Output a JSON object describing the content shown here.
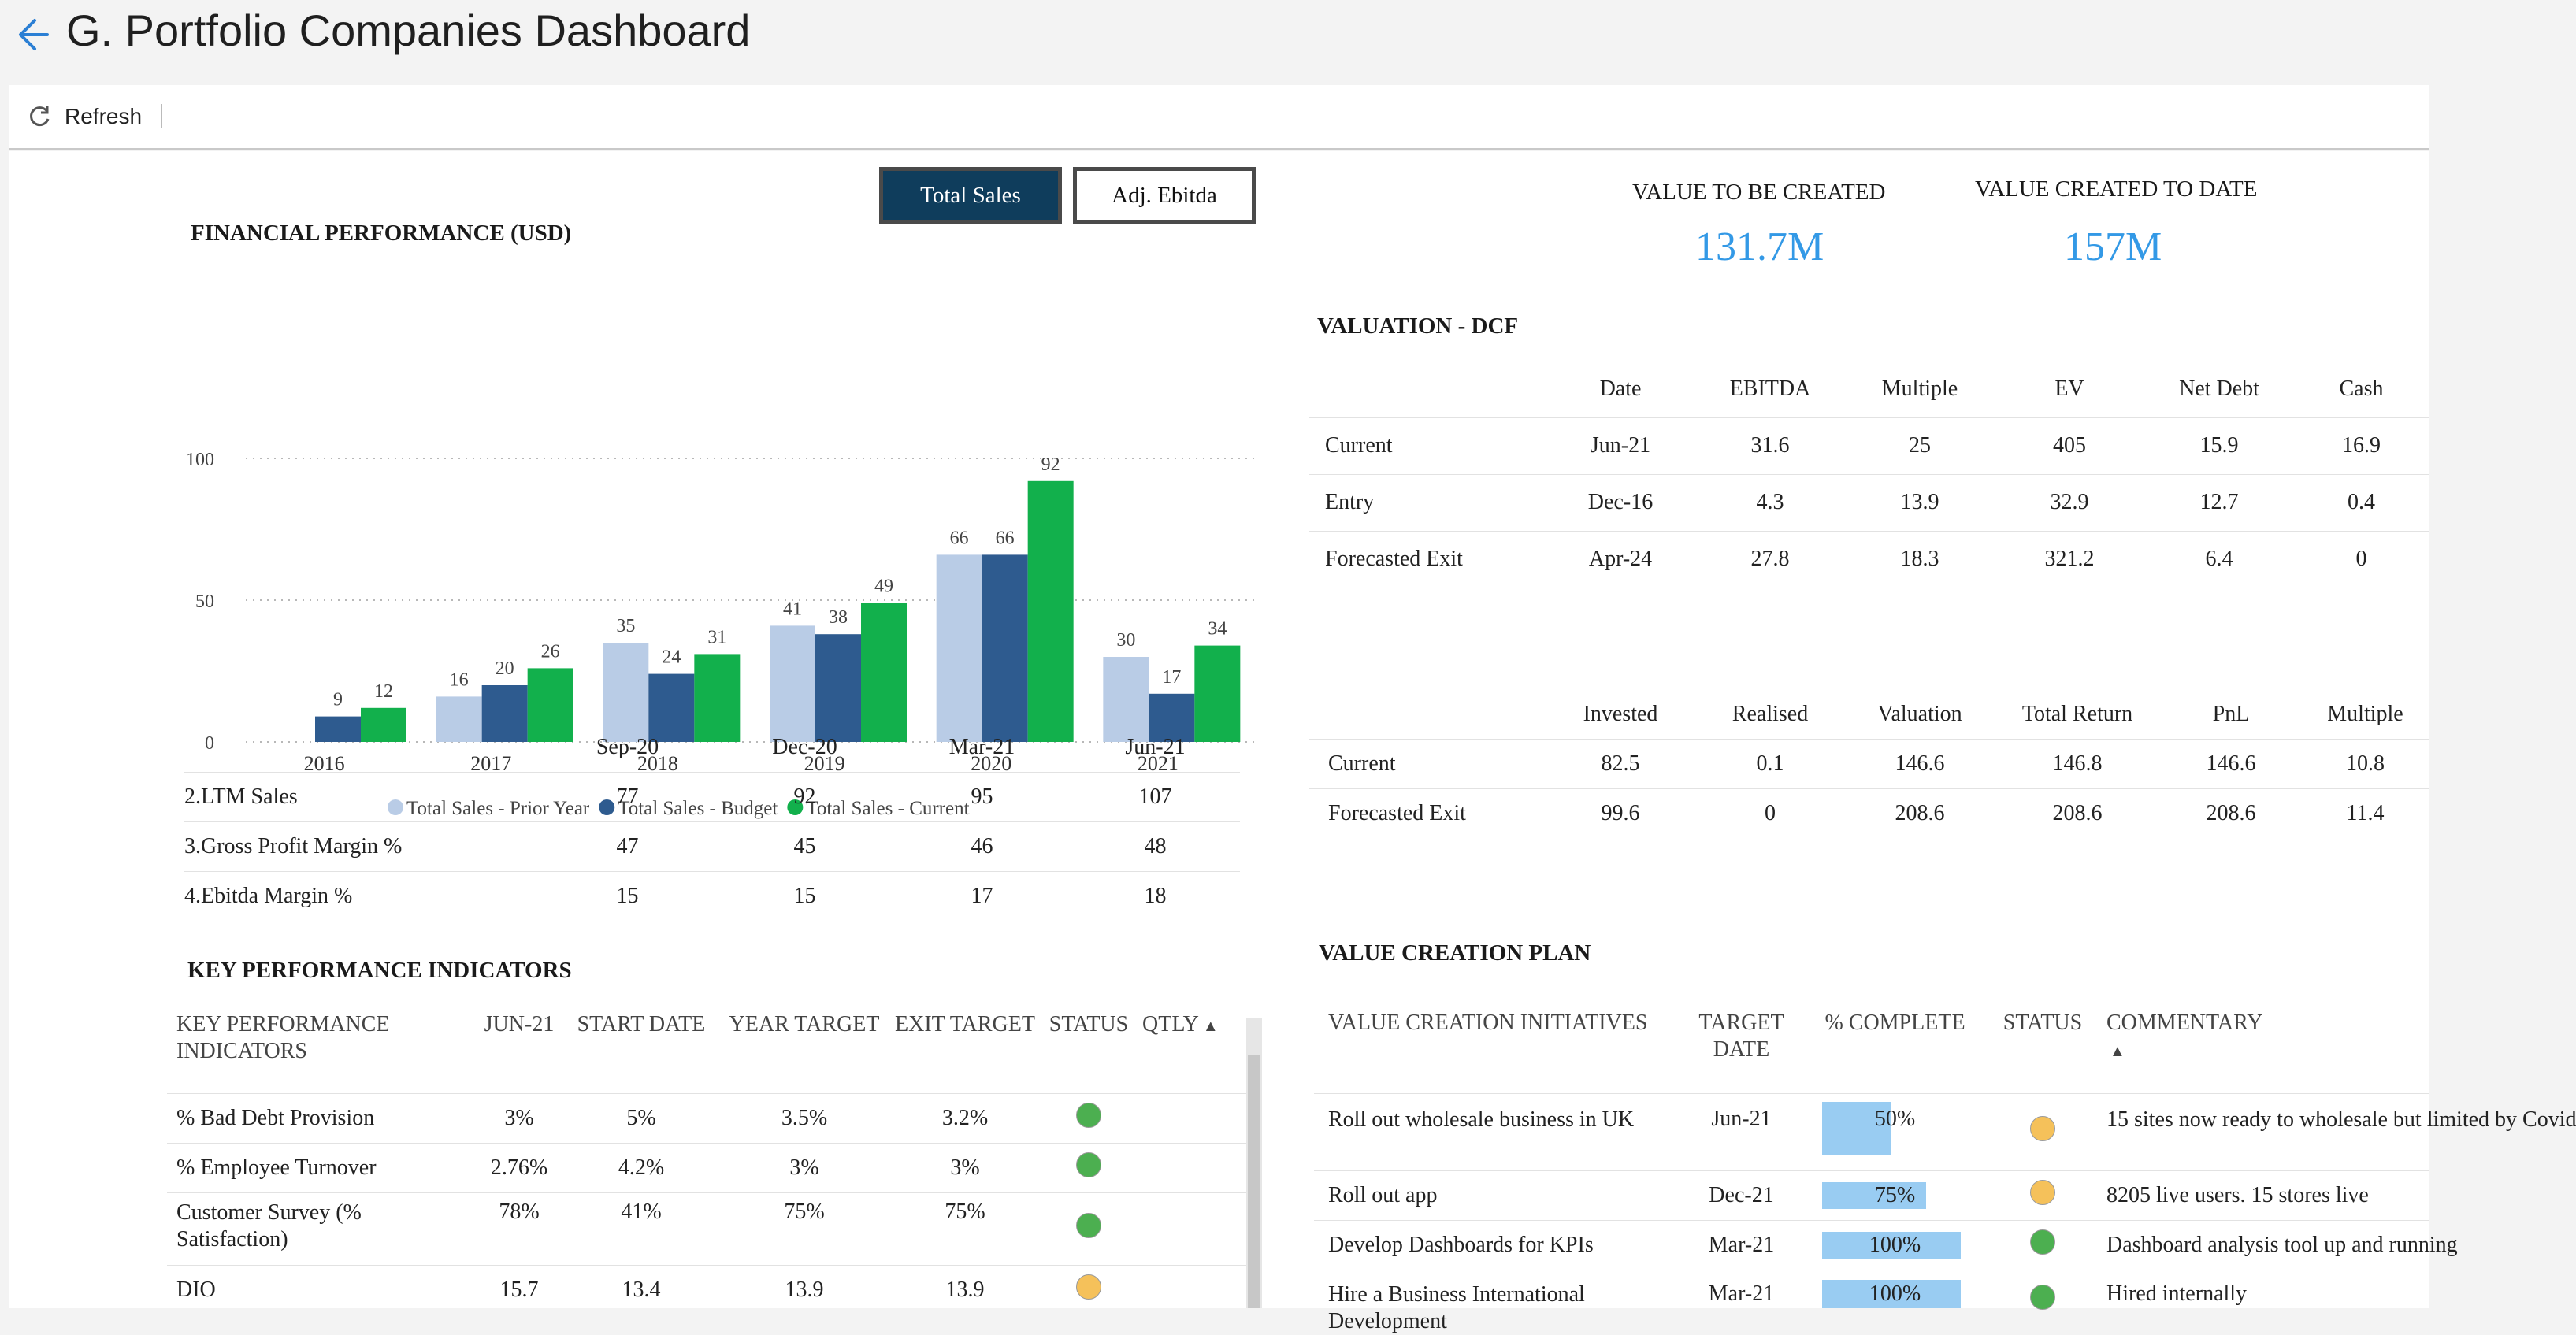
{
  "header": {
    "title": "G. Portfolio Companies Dashboard",
    "back_icon": "arrow-left-icon",
    "accent": "#2b7fd4"
  },
  "toolbar": {
    "refresh_label": "Refresh",
    "refresh_icon": "refresh-icon"
  },
  "financial": {
    "title": "FINANCIAL PERFORMANCE (USD)",
    "toggle_active": "Total Sales",
    "toggle_inactive": "Adj. Ebitda",
    "toggle_active_color": "#0f3d5c"
  },
  "chart_data": {
    "type": "bar",
    "categories": [
      "2016",
      "2017",
      "2018",
      "2019",
      "2020",
      "2021"
    ],
    "series": [
      {
        "name": "Total Sales - Prior Year",
        "color": "#b9cce6",
        "values": [
          null,
          16,
          35,
          41,
          66,
          30
        ]
      },
      {
        "name": "Total Sales - Budget",
        "color": "#2e5b8f",
        "values": [
          9,
          20,
          24,
          38,
          66,
          17
        ]
      },
      {
        "name": "Total Sales - Current",
        "color": "#12b04c",
        "values": [
          12,
          26,
          31,
          49,
          92,
          34
        ]
      }
    ],
    "yticks": [
      0,
      50,
      100
    ],
    "ylim": [
      0,
      100
    ],
    "grid": "dotted",
    "legend": "bottom"
  },
  "metrics_table": {
    "columns": [
      "",
      "Sep-20",
      "Dec-20",
      "Mar-21",
      "Jun-21"
    ],
    "rows": [
      [
        "2.LTM Sales",
        "77",
        "92",
        "95",
        "107"
      ],
      [
        "3.Gross Profit Margin %",
        "47",
        "45",
        "46",
        "48"
      ],
      [
        "4.Ebitda Margin %",
        "15",
        "15",
        "17",
        "18"
      ]
    ]
  },
  "kpi": {
    "title": "KEY PERFORMANCE INDICATORS",
    "columns": [
      "KEY PERFORMANCE INDICATORS",
      "JUN-21",
      "START DATE",
      "YEAR TARGET",
      "EXIT TARGET",
      "STATUS",
      "QTLY"
    ],
    "rows": [
      {
        "name": "% Bad Debt Provision",
        "jun21": "3%",
        "start": "5%",
        "year": "3.5%",
        "exit": "3.2%",
        "status": "green"
      },
      {
        "name": "% Employee Turnover",
        "jun21": "2.76%",
        "start": "4.2%",
        "year": "3%",
        "exit": "3%",
        "status": "green"
      },
      {
        "name": "Customer Survey (% Satisfaction)",
        "jun21": "78%",
        "start": "41%",
        "year": "75%",
        "exit": "75%",
        "status": "green"
      },
      {
        "name": "DIO",
        "jun21": "15.7",
        "start": "13.4",
        "year": "13.9",
        "exit": "13.9",
        "status": "amber"
      }
    ],
    "status_colors": {
      "green": "#4caf50",
      "amber": "#f5c15a"
    }
  },
  "value_created": {
    "to_be_created_label": "VALUE TO BE CREATED",
    "to_be_created_value": "131.7M",
    "created_to_date_label": "VALUE CREATED TO DATE",
    "created_to_date_value": "157M"
  },
  "dcf": {
    "title": "VALUATION - DCF",
    "columns": [
      "",
      "Date",
      "EBITDA",
      "Multiple",
      "EV",
      "Net Debt",
      "Cash"
    ],
    "rows": [
      [
        "Current",
        "Jun-21",
        "31.6",
        "25",
        "405",
        "15.9",
        "16.9"
      ],
      [
        "Entry",
        "Dec-16",
        "4.3",
        "13.9",
        "32.9",
        "12.7",
        "0.4"
      ],
      [
        "Forecasted Exit",
        "Apr-24",
        "27.8",
        "18.3",
        "321.2",
        "6.4",
        "0"
      ]
    ]
  },
  "returns": {
    "columns": [
      "",
      "Invested",
      "Realised",
      "Valuation",
      "Total Return",
      "PnL",
      "Multiple"
    ],
    "rows": [
      [
        "Current",
        "82.5",
        "0.1",
        "146.6",
        "146.8",
        "146.6",
        "10.8"
      ],
      [
        "Forecasted Exit",
        "99.6",
        "0",
        "208.6",
        "208.6",
        "208.6",
        "11.4"
      ]
    ]
  },
  "vcp": {
    "title": "VALUE CREATION PLAN",
    "columns": [
      "VALUE CREATION INITIATIVES",
      "TARGET DATE",
      "% COMPLETE",
      "STATUS",
      "COMMENTARY"
    ],
    "sort_icon": "sort-up-icon",
    "rows": [
      {
        "name": "Roll out wholesale business in UK",
        "date": "Jun-21",
        "pct": "50%",
        "pct_value": 0.5,
        "status": "amber",
        "comment": "15 sites now ready to wholesale but limited by Covid"
      },
      {
        "name": "Roll out app",
        "date": "Dec-21",
        "pct": "75%",
        "pct_value": 0.75,
        "status": "amber",
        "comment": "8205 live users. 15 stores live"
      },
      {
        "name": "Develop Dashboards for KPIs",
        "date": "Mar-21",
        "pct": "100%",
        "pct_value": 1.0,
        "status": "green",
        "comment": "Dashboard analysis tool up and running"
      },
      {
        "name": "Hire a Business International Development",
        "date": "Mar-21",
        "pct": "100%",
        "pct_value": 1.0,
        "status": "green",
        "comment": "Hired internally"
      }
    ]
  }
}
